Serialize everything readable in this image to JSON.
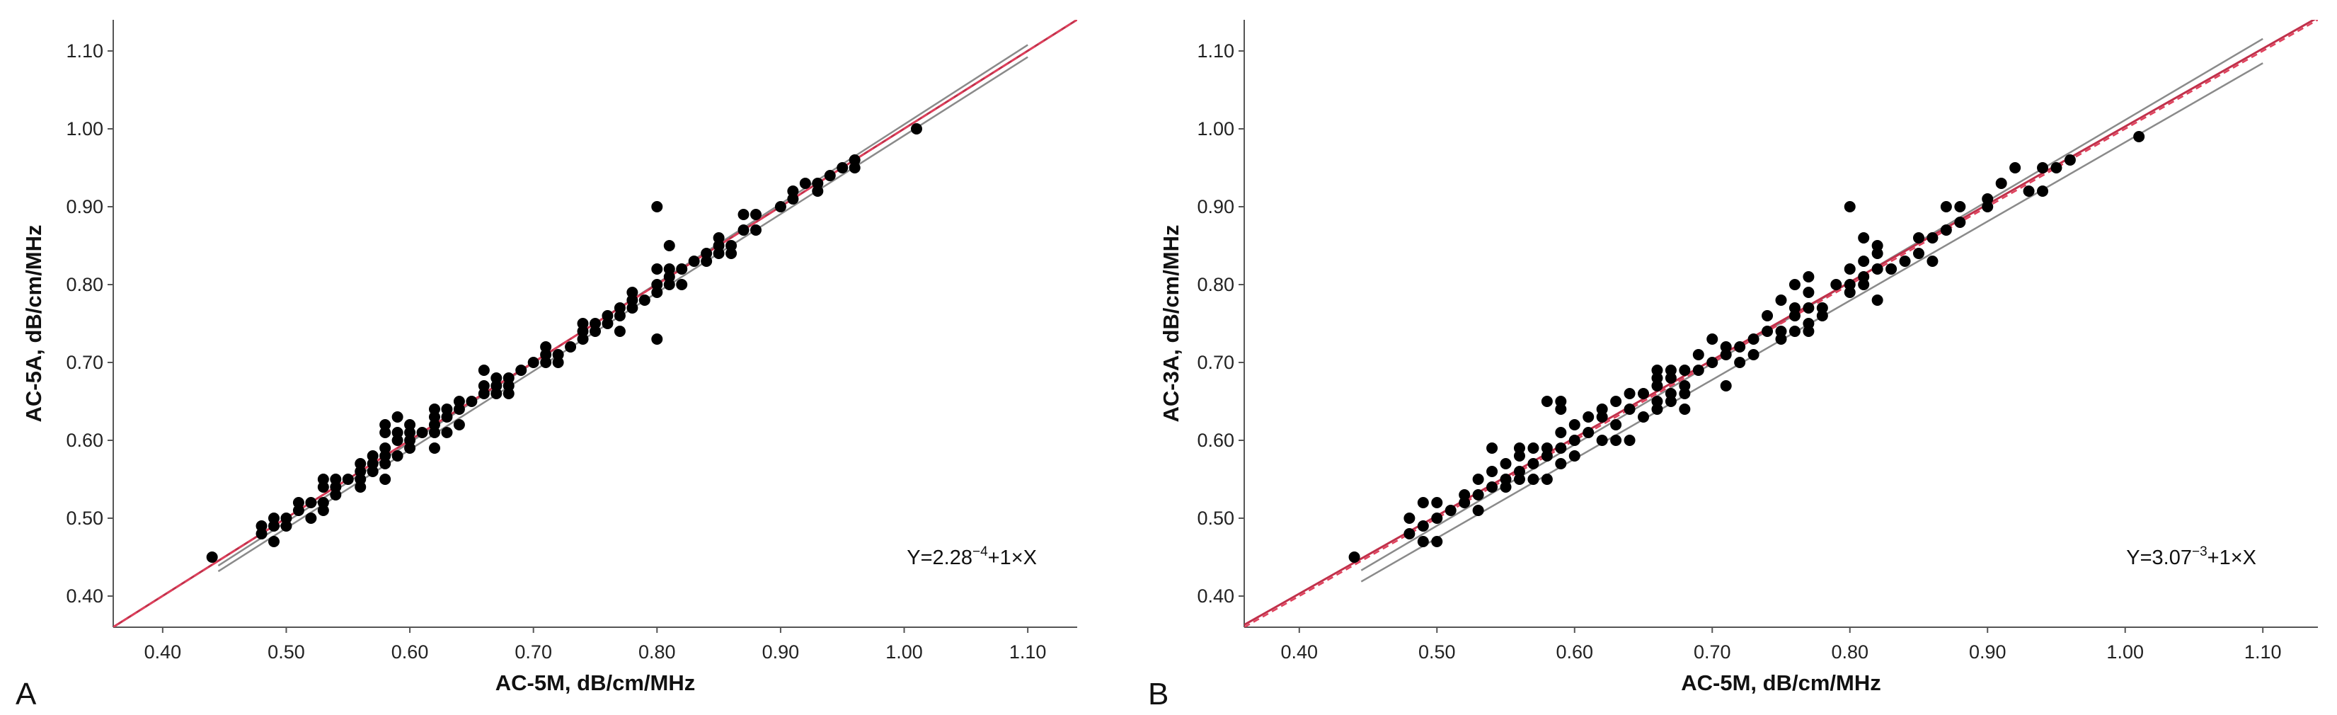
{
  "chart_data": [
    {
      "type": "scatter",
      "panel_label": "A",
      "xlabel": "AC-5M, dB/cm/MHz",
      "ylabel": "AC-5A, dB/cm/MHz",
      "xlim": [
        0.36,
        1.14
      ],
      "ylim": [
        0.36,
        1.14
      ],
      "xticks": [
        "0.40",
        "0.50",
        "0.60",
        "0.70",
        "0.80",
        "0.90",
        "1.00",
        "1.10"
      ],
      "yticks": [
        "0.40",
        "0.50",
        "0.60",
        "0.70",
        "0.80",
        "0.90",
        "1.00",
        "1.10"
      ],
      "equation": {
        "prefix": "Y=2.28",
        "exponent": "−4",
        "suffix": "+1×X"
      },
      "fit": {
        "intercept": 0.000228,
        "slope": 1,
        "color": "#c0304a"
      },
      "identity_color": "#e0405c",
      "ci_color": "#8a8a8a",
      "point_color": "#000000",
      "grid": false,
      "points": [
        [
          0.44,
          0.45
        ],
        [
          0.48,
          0.48
        ],
        [
          0.48,
          0.49
        ],
        [
          0.49,
          0.47
        ],
        [
          0.49,
          0.49
        ],
        [
          0.49,
          0.5
        ],
        [
          0.5,
          0.49
        ],
        [
          0.5,
          0.5
        ],
        [
          0.51,
          0.51
        ],
        [
          0.51,
          0.52
        ],
        [
          0.52,
          0.5
        ],
        [
          0.52,
          0.52
        ],
        [
          0.53,
          0.51
        ],
        [
          0.53,
          0.52
        ],
        [
          0.53,
          0.54
        ],
        [
          0.53,
          0.55
        ],
        [
          0.54,
          0.53
        ],
        [
          0.54,
          0.54
        ],
        [
          0.54,
          0.55
        ],
        [
          0.55,
          0.55
        ],
        [
          0.56,
          0.54
        ],
        [
          0.56,
          0.55
        ],
        [
          0.56,
          0.56
        ],
        [
          0.56,
          0.57
        ],
        [
          0.57,
          0.56
        ],
        [
          0.57,
          0.57
        ],
        [
          0.57,
          0.58
        ],
        [
          0.58,
          0.55
        ],
        [
          0.58,
          0.57
        ],
        [
          0.58,
          0.58
        ],
        [
          0.58,
          0.59
        ],
        [
          0.58,
          0.61
        ],
        [
          0.58,
          0.62
        ],
        [
          0.59,
          0.58
        ],
        [
          0.59,
          0.6
        ],
        [
          0.59,
          0.61
        ],
        [
          0.59,
          0.63
        ],
        [
          0.6,
          0.59
        ],
        [
          0.6,
          0.6
        ],
        [
          0.6,
          0.61
        ],
        [
          0.6,
          0.62
        ],
        [
          0.61,
          0.61
        ],
        [
          0.62,
          0.59
        ],
        [
          0.62,
          0.61
        ],
        [
          0.62,
          0.62
        ],
        [
          0.62,
          0.63
        ],
        [
          0.62,
          0.64
        ],
        [
          0.63,
          0.61
        ],
        [
          0.63,
          0.63
        ],
        [
          0.63,
          0.64
        ],
        [
          0.64,
          0.62
        ],
        [
          0.64,
          0.64
        ],
        [
          0.64,
          0.65
        ],
        [
          0.65,
          0.65
        ],
        [
          0.66,
          0.66
        ],
        [
          0.66,
          0.67
        ],
        [
          0.66,
          0.69
        ],
        [
          0.67,
          0.66
        ],
        [
          0.67,
          0.67
        ],
        [
          0.67,
          0.68
        ],
        [
          0.68,
          0.66
        ],
        [
          0.68,
          0.67
        ],
        [
          0.68,
          0.68
        ],
        [
          0.69,
          0.69
        ],
        [
          0.7,
          0.7
        ],
        [
          0.71,
          0.7
        ],
        [
          0.71,
          0.71
        ],
        [
          0.71,
          0.72
        ],
        [
          0.72,
          0.7
        ],
        [
          0.72,
          0.71
        ],
        [
          0.73,
          0.72
        ],
        [
          0.74,
          0.73
        ],
        [
          0.74,
          0.74
        ],
        [
          0.74,
          0.75
        ],
        [
          0.75,
          0.74
        ],
        [
          0.75,
          0.75
        ],
        [
          0.76,
          0.75
        ],
        [
          0.76,
          0.76
        ],
        [
          0.77,
          0.74
        ],
        [
          0.77,
          0.76
        ],
        [
          0.77,
          0.77
        ],
        [
          0.78,
          0.77
        ],
        [
          0.78,
          0.78
        ],
        [
          0.78,
          0.79
        ],
        [
          0.79,
          0.78
        ],
        [
          0.8,
          0.73
        ],
        [
          0.8,
          0.79
        ],
        [
          0.8,
          0.8
        ],
        [
          0.8,
          0.82
        ],
        [
          0.8,
          0.9
        ],
        [
          0.81,
          0.8
        ],
        [
          0.81,
          0.81
        ],
        [
          0.81,
          0.82
        ],
        [
          0.81,
          0.85
        ],
        [
          0.82,
          0.8
        ],
        [
          0.82,
          0.82
        ],
        [
          0.83,
          0.83
        ],
        [
          0.84,
          0.83
        ],
        [
          0.84,
          0.84
        ],
        [
          0.85,
          0.84
        ],
        [
          0.85,
          0.85
        ],
        [
          0.85,
          0.86
        ],
        [
          0.86,
          0.84
        ],
        [
          0.86,
          0.85
        ],
        [
          0.87,
          0.87
        ],
        [
          0.87,
          0.89
        ],
        [
          0.88,
          0.87
        ],
        [
          0.88,
          0.89
        ],
        [
          0.9,
          0.9
        ],
        [
          0.91,
          0.91
        ],
        [
          0.91,
          0.92
        ],
        [
          0.92,
          0.93
        ],
        [
          0.93,
          0.92
        ],
        [
          0.93,
          0.93
        ],
        [
          0.94,
          0.94
        ],
        [
          0.95,
          0.95
        ],
        [
          0.96,
          0.95
        ],
        [
          0.96,
          0.96
        ],
        [
          1.01,
          1.0
        ]
      ]
    },
    {
      "type": "scatter",
      "panel_label": "B",
      "xlabel": "AC-5M, dB/cm/MHz",
      "ylabel": "AC-3A, dB/cm/MHz",
      "xlim": [
        0.36,
        1.14
      ],
      "ylim": [
        0.36,
        1.14
      ],
      "xticks": [
        "0.40",
        "0.50",
        "0.60",
        "0.70",
        "0.80",
        "0.90",
        "1.00",
        "1.10"
      ],
      "yticks": [
        "0.40",
        "0.50",
        "0.60",
        "0.70",
        "0.80",
        "0.90",
        "1.00",
        "1.10"
      ],
      "equation": {
        "prefix": "Y=3.07",
        "exponent": "−3",
        "suffix": "+1×X"
      },
      "fit": {
        "intercept": 0.00307,
        "slope": 1,
        "color": "#c0304a"
      },
      "identity_color": "#e0405c",
      "ci_color": "#8a8a8a",
      "point_color": "#000000",
      "grid": false,
      "points": [
        [
          0.44,
          0.45
        ],
        [
          0.48,
          0.48
        ],
        [
          0.48,
          0.5
        ],
        [
          0.49,
          0.47
        ],
        [
          0.49,
          0.49
        ],
        [
          0.49,
          0.52
        ],
        [
          0.5,
          0.47
        ],
        [
          0.5,
          0.5
        ],
        [
          0.5,
          0.52
        ],
        [
          0.51,
          0.51
        ],
        [
          0.52,
          0.52
        ],
        [
          0.52,
          0.53
        ],
        [
          0.53,
          0.51
        ],
        [
          0.53,
          0.53
        ],
        [
          0.53,
          0.55
        ],
        [
          0.54,
          0.54
        ],
        [
          0.54,
          0.56
        ],
        [
          0.54,
          0.59
        ],
        [
          0.55,
          0.54
        ],
        [
          0.55,
          0.55
        ],
        [
          0.55,
          0.57
        ],
        [
          0.56,
          0.55
        ],
        [
          0.56,
          0.56
        ],
        [
          0.56,
          0.58
        ],
        [
          0.56,
          0.59
        ],
        [
          0.57,
          0.55
        ],
        [
          0.57,
          0.57
        ],
        [
          0.57,
          0.59
        ],
        [
          0.58,
          0.55
        ],
        [
          0.58,
          0.58
        ],
        [
          0.58,
          0.59
        ],
        [
          0.58,
          0.65
        ],
        [
          0.59,
          0.57
        ],
        [
          0.59,
          0.59
        ],
        [
          0.59,
          0.61
        ],
        [
          0.59,
          0.64
        ],
        [
          0.59,
          0.65
        ],
        [
          0.6,
          0.58
        ],
        [
          0.6,
          0.6
        ],
        [
          0.6,
          0.62
        ],
        [
          0.61,
          0.61
        ],
        [
          0.61,
          0.63
        ],
        [
          0.62,
          0.6
        ],
        [
          0.62,
          0.63
        ],
        [
          0.62,
          0.64
        ],
        [
          0.63,
          0.6
        ],
        [
          0.63,
          0.62
        ],
        [
          0.63,
          0.65
        ],
        [
          0.64,
          0.6
        ],
        [
          0.64,
          0.64
        ],
        [
          0.64,
          0.66
        ],
        [
          0.65,
          0.63
        ],
        [
          0.65,
          0.66
        ],
        [
          0.66,
          0.64
        ],
        [
          0.66,
          0.65
        ],
        [
          0.66,
          0.67
        ],
        [
          0.66,
          0.68
        ],
        [
          0.66,
          0.69
        ],
        [
          0.67,
          0.65
        ],
        [
          0.67,
          0.66
        ],
        [
          0.67,
          0.68
        ],
        [
          0.67,
          0.69
        ],
        [
          0.68,
          0.64
        ],
        [
          0.68,
          0.66
        ],
        [
          0.68,
          0.67
        ],
        [
          0.68,
          0.69
        ],
        [
          0.69,
          0.69
        ],
        [
          0.69,
          0.71
        ],
        [
          0.7,
          0.7
        ],
        [
          0.7,
          0.73
        ],
        [
          0.71,
          0.67
        ],
        [
          0.71,
          0.71
        ],
        [
          0.71,
          0.72
        ],
        [
          0.72,
          0.7
        ],
        [
          0.72,
          0.72
        ],
        [
          0.73,
          0.71
        ],
        [
          0.73,
          0.73
        ],
        [
          0.74,
          0.74
        ],
        [
          0.74,
          0.76
        ],
        [
          0.75,
          0.73
        ],
        [
          0.75,
          0.74
        ],
        [
          0.75,
          0.78
        ],
        [
          0.76,
          0.74
        ],
        [
          0.76,
          0.76
        ],
        [
          0.76,
          0.77
        ],
        [
          0.76,
          0.8
        ],
        [
          0.77,
          0.74
        ],
        [
          0.77,
          0.75
        ],
        [
          0.77,
          0.77
        ],
        [
          0.77,
          0.79
        ],
        [
          0.77,
          0.81
        ],
        [
          0.78,
          0.76
        ],
        [
          0.78,
          0.77
        ],
        [
          0.79,
          0.8
        ],
        [
          0.8,
          0.79
        ],
        [
          0.8,
          0.8
        ],
        [
          0.8,
          0.82
        ],
        [
          0.8,
          0.9
        ],
        [
          0.81,
          0.8
        ],
        [
          0.81,
          0.81
        ],
        [
          0.81,
          0.83
        ],
        [
          0.81,
          0.86
        ],
        [
          0.82,
          0.78
        ],
        [
          0.82,
          0.82
        ],
        [
          0.82,
          0.84
        ],
        [
          0.82,
          0.85
        ],
        [
          0.83,
          0.82
        ],
        [
          0.84,
          0.83
        ],
        [
          0.85,
          0.84
        ],
        [
          0.85,
          0.86
        ],
        [
          0.86,
          0.83
        ],
        [
          0.86,
          0.86
        ],
        [
          0.87,
          0.87
        ],
        [
          0.87,
          0.9
        ],
        [
          0.88,
          0.88
        ],
        [
          0.88,
          0.9
        ],
        [
          0.9,
          0.9
        ],
        [
          0.9,
          0.91
        ],
        [
          0.91,
          0.93
        ],
        [
          0.92,
          0.95
        ],
        [
          0.93,
          0.92
        ],
        [
          0.94,
          0.92
        ],
        [
          0.94,
          0.95
        ],
        [
          0.95,
          0.95
        ],
        [
          0.96,
          0.96
        ],
        [
          1.01,
          0.99
        ]
      ]
    }
  ]
}
